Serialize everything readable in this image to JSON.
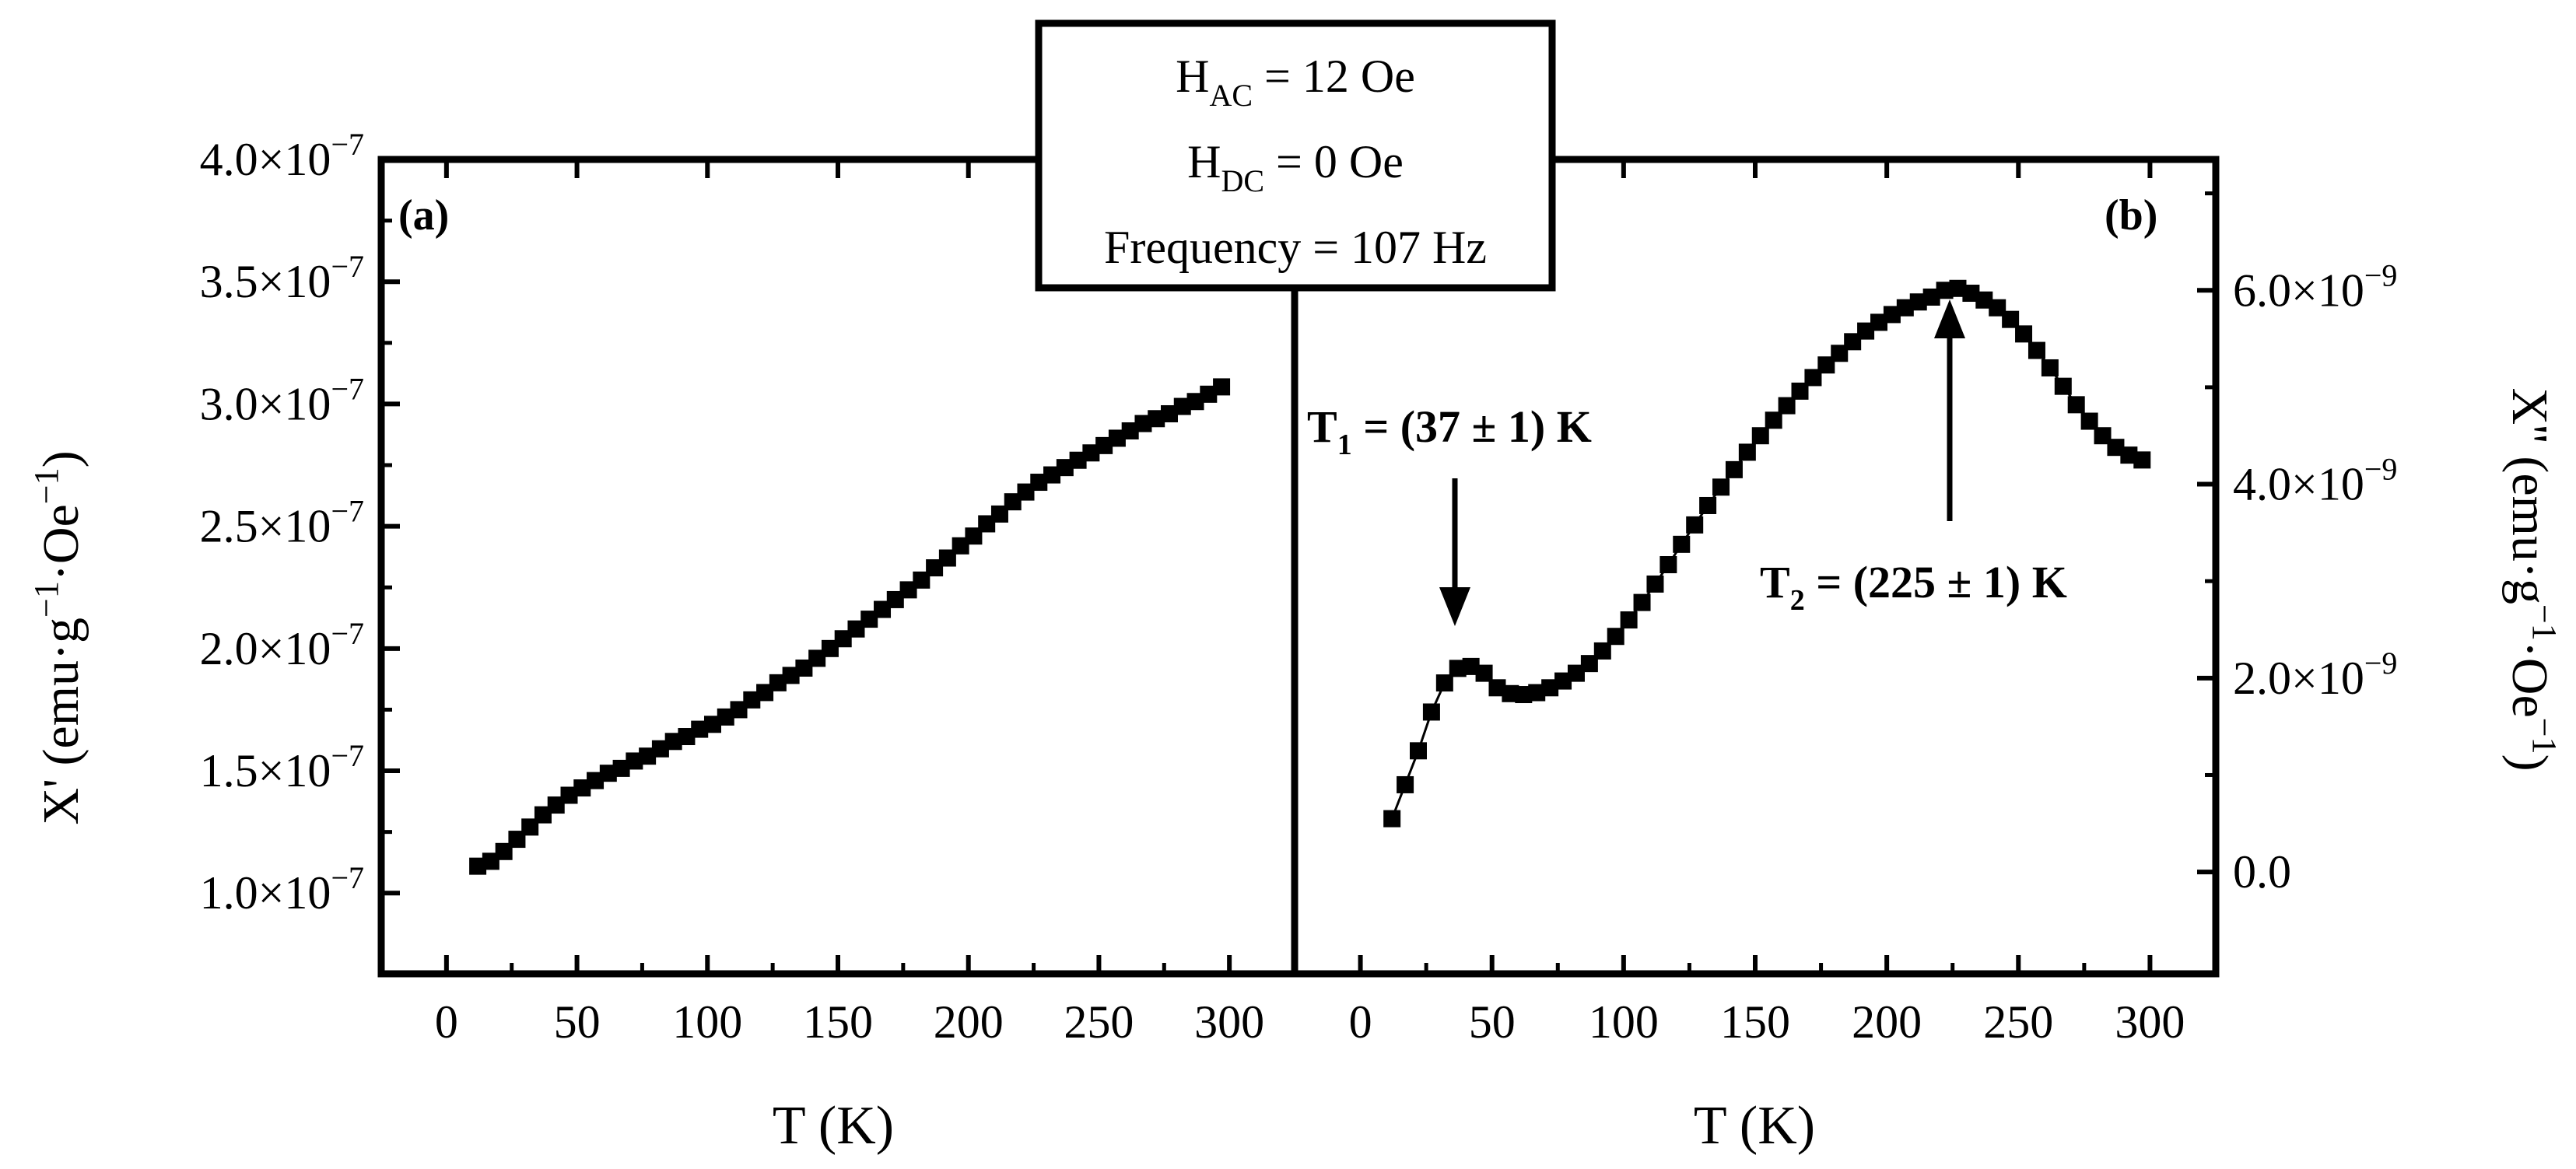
{
  "parameters": {
    "h_ac": {
      "symbol": "H",
      "sub": "AC",
      "rest": " = 12 Oe"
    },
    "h_dc": {
      "symbol": "H",
      "sub": "DC",
      "rest": " = 0 Oe"
    },
    "frequency": "Frequency = 107 Hz"
  },
  "chart_data": [
    {
      "panel": "(a)",
      "type": "scatter",
      "marker": "square",
      "xlabel": "T (K)",
      "ylabel": {
        "main": "X' (emu·g",
        "exp": "−1",
        "mid": "·Oe",
        "exp2": "−1",
        "end": ")"
      },
      "xlim": [
        -25,
        325
      ],
      "ylim": [
        0.67,
        4.0
      ],
      "y_scale_exponent": "−7",
      "xticks": [
        0,
        50,
        100,
        150,
        200,
        250,
        300
      ],
      "yticks": [
        1.0,
        1.5,
        2.0,
        2.5,
        3.0,
        3.5,
        4.0
      ],
      "ytick_labels": [
        "1.0×10",
        "1.5×10",
        "2.0×10",
        "2.5×10",
        "3.0×10",
        "3.5×10",
        "4.0×10"
      ],
      "x": [
        12,
        17,
        22,
        27,
        32,
        37,
        42,
        47,
        52,
        57,
        62,
        67,
        72,
        77,
        82,
        87,
        92,
        97,
        102,
        107,
        112,
        117,
        122,
        127,
        132,
        137,
        142,
        147,
        152,
        157,
        162,
        167,
        172,
        177,
        182,
        187,
        192,
        197,
        202,
        207,
        212,
        217,
        222,
        227,
        232,
        237,
        242,
        247,
        252,
        257,
        262,
        267,
        272,
        277,
        282,
        287,
        292,
        297
      ],
      "y": [
        1.11,
        1.13,
        1.17,
        1.22,
        1.27,
        1.32,
        1.36,
        1.4,
        1.43,
        1.46,
        1.49,
        1.51,
        1.54,
        1.56,
        1.59,
        1.62,
        1.64,
        1.67,
        1.69,
        1.72,
        1.75,
        1.79,
        1.82,
        1.86,
        1.89,
        1.92,
        1.96,
        2.0,
        2.04,
        2.08,
        2.12,
        2.16,
        2.2,
        2.24,
        2.28,
        2.33,
        2.37,
        2.42,
        2.46,
        2.51,
        2.55,
        2.6,
        2.64,
        2.68,
        2.71,
        2.74,
        2.77,
        2.8,
        2.83,
        2.86,
        2.89,
        2.92,
        2.94,
        2.96,
        2.99,
        3.01,
        3.04,
        3.07
      ]
    },
    {
      "panel": "(b)",
      "type": "scatter",
      "marker": "square",
      "xlabel": "T (K)",
      "ylabel": {
        "main": "X'' (emu·g",
        "exp": "−1",
        "mid": "·Oe",
        "exp2": "−1",
        "end": ")"
      },
      "xlim": [
        -25,
        325
      ],
      "ylim": [
        -1.05,
        7.35
      ],
      "y_scale_exponent": "−9",
      "yticks": [
        0,
        2,
        4,
        6
      ],
      "ytick_labels": [
        "0.0",
        "2.0×10",
        "4.0×10",
        "6.0×10"
      ],
      "ytick_has_exponent": [
        false,
        true,
        true,
        true
      ],
      "xticks": [
        0,
        50,
        100,
        150,
        200,
        250,
        300
      ],
      "x": [
        12,
        17,
        22,
        27,
        32,
        37,
        42,
        47,
        52,
        57,
        62,
        67,
        72,
        77,
        82,
        87,
        92,
        97,
        102,
        107,
        112,
        117,
        122,
        127,
        132,
        137,
        142,
        147,
        152,
        157,
        162,
        167,
        172,
        177,
        182,
        187,
        192,
        197,
        202,
        207,
        212,
        217,
        222,
        227,
        232,
        237,
        242,
        247,
        252,
        257,
        262,
        267,
        272,
        277,
        282,
        287,
        292,
        297
      ],
      "y": [
        0.55,
        0.9,
        1.25,
        1.65,
        1.95,
        2.1,
        2.12,
        2.05,
        1.9,
        1.84,
        1.83,
        1.85,
        1.9,
        1.97,
        2.05,
        2.15,
        2.28,
        2.43,
        2.6,
        2.78,
        2.97,
        3.17,
        3.38,
        3.58,
        3.78,
        3.97,
        4.15,
        4.33,
        4.5,
        4.66,
        4.81,
        4.96,
        5.1,
        5.23,
        5.35,
        5.47,
        5.58,
        5.67,
        5.75,
        5.82,
        5.88,
        5.93,
        6.0,
        6.02,
        5.97,
        5.9,
        5.82,
        5.7,
        5.55,
        5.38,
        5.2,
        5.01,
        4.82,
        4.65,
        4.5,
        4.38,
        4.3,
        4.25
      ],
      "annotations": [
        {
          "main": "T",
          "sub": "1",
          "rest": " = (37 ± 1) K",
          "x": 37,
          "y": 2.12
        },
        {
          "main": "T",
          "sub": "2",
          "rest": " = (225 ± 1) K",
          "x": 225,
          "y": 6.02
        }
      ]
    }
  ]
}
